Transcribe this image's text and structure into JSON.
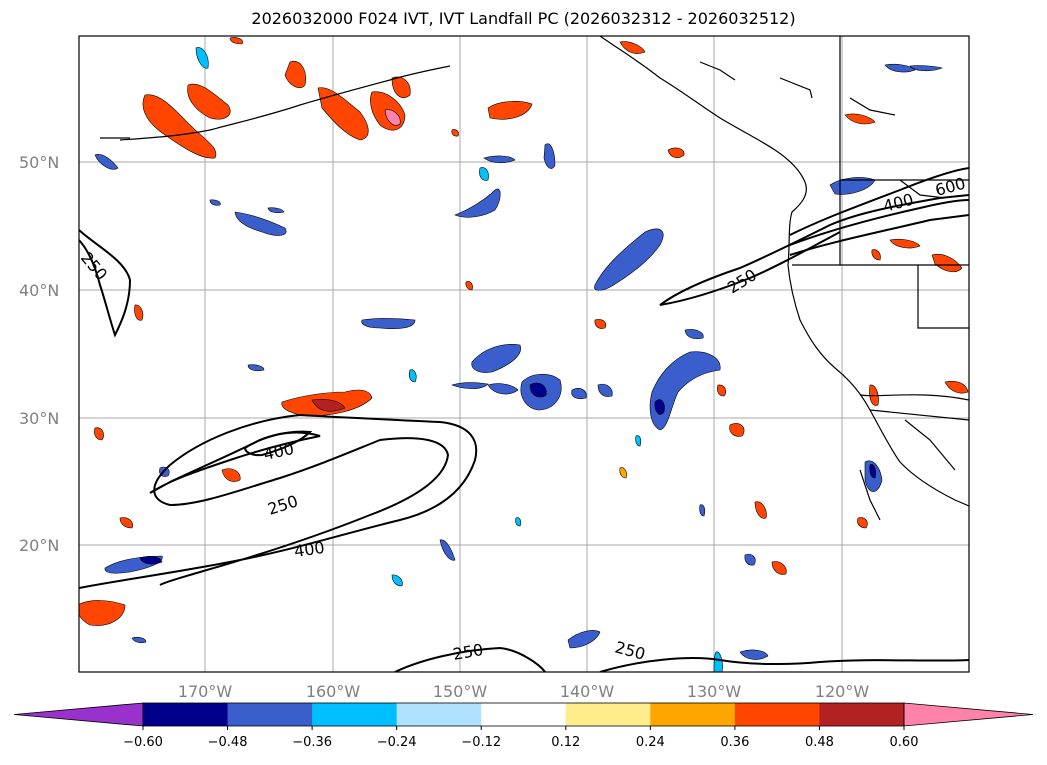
{
  "title": "2026032000 F024 IVT, IVT Landfall PC (2026032312 - 2026032512)",
  "lat_labels": [
    "50°N",
    "40°N",
    "30°N",
    "20°N"
  ],
  "lon_labels": [
    "170°W",
    "160°W",
    "150°W",
    "140°W",
    "130°W",
    "120°W"
  ],
  "contour_labels": [
    "250",
    "250",
    "400",
    "600",
    "400",
    "250",
    "400",
    "250",
    "250"
  ],
  "colorbar": {
    "ticks": [
      "−0.60",
      "−0.48",
      "−0.36",
      "−0.24",
      "−0.12",
      "0.12",
      "0.24",
      "0.36",
      "0.48",
      "0.60"
    ],
    "colors": [
      "#9932cc",
      "#00008b",
      "#3a5fcd",
      "#00bfff",
      "#b0e2ff",
      "#ffffff",
      "#ffec8b",
      "#ffa500",
      "#ff4500",
      "#b22222",
      "#ff82ab"
    ]
  },
  "legend_colors": {
    "neg_strong": "#00008b",
    "neg_mid": "#3a5fcd",
    "neg_weak": "#00bfff",
    "neg_faint": "#b0e2ff",
    "pos_faint": "#ffec8b",
    "pos_weak": "#ffa500",
    "pos_mid": "#ff4500",
    "pos_strong": "#b22222",
    "pos_max": "#ff82ab"
  }
}
